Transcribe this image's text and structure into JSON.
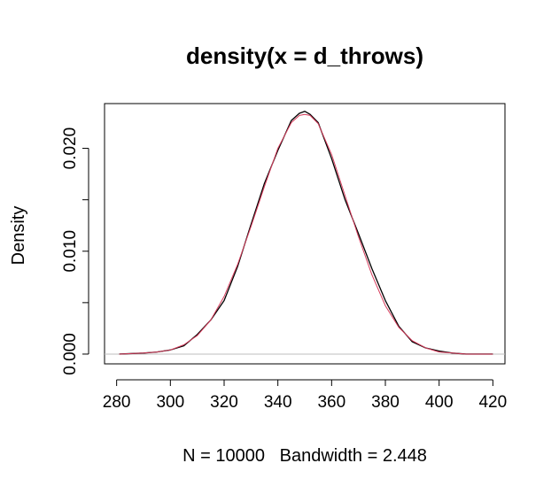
{
  "chart_data": {
    "type": "line",
    "title": "density(x = d_throws)",
    "xlabel": "N = 10000   Bandwidth = 2.448",
    "ylabel": "Density",
    "xlim": [
      275.5,
      424.5
    ],
    "ylim": [
      -0.00095,
      0.02435
    ],
    "x_ticks": [
      280,
      300,
      320,
      340,
      360,
      380,
      400,
      420
    ],
    "y_ticks": [
      0.0,
      0.005,
      0.01,
      0.015,
      0.02
    ],
    "y_tick_labels": [
      "0.000",
      "0.010",
      "0.020"
    ],
    "grid": false,
    "legend": "none",
    "baseline_color": "#bebebe",
    "series": [
      {
        "color": "#000000",
        "x": [
          281,
          290,
          295,
          300,
          305,
          310,
          315,
          320,
          325,
          330,
          335,
          340,
          345,
          348,
          350,
          352,
          355,
          360,
          365,
          370,
          375,
          380,
          385,
          390,
          395,
          400,
          405,
          410,
          420
        ],
        "y": [
          0.0,
          0.0001,
          0.0002,
          0.0004,
          0.0008,
          0.0019,
          0.0033,
          0.0052,
          0.0085,
          0.0126,
          0.0166,
          0.0198,
          0.0227,
          0.0234,
          0.0236,
          0.0233,
          0.0225,
          0.019,
          0.015,
          0.0117,
          0.0083,
          0.0052,
          0.0027,
          0.0012,
          0.0006,
          0.0003,
          0.0001,
          0.0,
          0.0
        ]
      },
      {
        "color": "#d63a5a",
        "x": [
          281,
          290,
          295,
          300,
          305,
          310,
          315,
          320,
          325,
          330,
          335,
          340,
          345,
          348,
          350,
          352,
          355,
          360,
          365,
          370,
          375,
          380,
          385,
          390,
          395,
          400,
          405,
          410,
          420
        ],
        "y": [
          0.0,
          0.0001,
          0.0002,
          0.0004,
          0.0009,
          0.0018,
          0.0033,
          0.0056,
          0.0087,
          0.0124,
          0.0163,
          0.02,
          0.0225,
          0.0232,
          0.0233,
          0.0232,
          0.0224,
          0.0194,
          0.0154,
          0.0114,
          0.0077,
          0.0047,
          0.0026,
          0.0013,
          0.0006,
          0.0002,
          0.0001,
          0.0,
          0.0
        ]
      }
    ]
  }
}
